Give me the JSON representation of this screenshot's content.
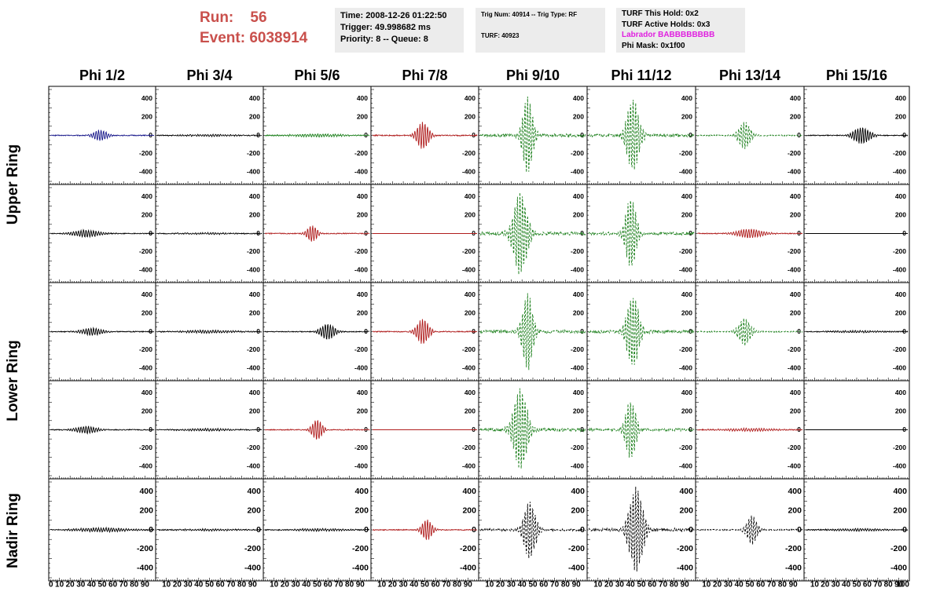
{
  "header": {
    "run_label": "Run:",
    "run_value": "56",
    "event_label": "Event:",
    "event_value": "6038914"
  },
  "info_boxes": {
    "time_box": [
      "Time: 2008-12-26 01:22:50",
      "Trigger: 49.998682 ms",
      "Priority: 8 -- Queue: 8"
    ],
    "trig_box": [
      "Trig Num: 40914 -- Trig Type: RF",
      "TURF: 40923"
    ],
    "turf_box": [
      "TURF This Hold: 0x2",
      "TURF Active Holds: 0x3",
      "Labrador BABBBBBBBB",
      "Phi Mask: 0x1f00"
    ]
  },
  "colors": {
    "run_text": "#c9504c",
    "labrador_text": "#e020e0",
    "info_bg": "#ececec",
    "blue": "#1a1a8c",
    "green": "#1b7f1b",
    "red": "#b01e1e",
    "black": "#000000"
  },
  "columns": [
    "Phi 1/2",
    "Phi 3/4",
    "Phi 5/6",
    "Phi 7/8",
    "Phi 9/10",
    "Phi 11/12",
    "Phi 13/14",
    "Phi 15/16"
  ],
  "row_labels": [
    "Upper Ring",
    "Lower Ring",
    "Nadir Ring"
  ],
  "y_ticks": [
    "400",
    "200",
    "0",
    "-200",
    "-400"
  ],
  "x_ticks": [
    "0",
    "10",
    "20",
    "30",
    "40",
    "50",
    "60",
    "70",
    "80",
    "90",
    "100"
  ],
  "chart_data": {
    "type": "line",
    "ylim": [
      -500,
      500
    ],
    "xlim": [
      0,
      100
    ],
    "panels": [
      [
        {
          "color": "blue",
          "style": "solid",
          "amp": 60,
          "center": 48,
          "width": 8
        },
        {
          "color": "black",
          "style": "solid",
          "amp": 10,
          "center": 50,
          "width": 30
        },
        {
          "color": "green",
          "style": "solid",
          "amp": 15,
          "center": 50,
          "width": 30
        },
        {
          "color": "red",
          "style": "solid",
          "amp": 150,
          "center": 48,
          "width": 7
        },
        {
          "color": "green",
          "style": "dashed",
          "amp": 420,
          "center": 45,
          "width": 6
        },
        {
          "color": "green",
          "style": "dashed",
          "amp": 400,
          "center": 42,
          "width": 7
        },
        {
          "color": "green",
          "style": "dashed",
          "amp": 150,
          "center": 45,
          "width": 7
        },
        {
          "color": "black",
          "style": "solid",
          "amp": 90,
          "center": 55,
          "width": 10
        }
      ],
      [
        {
          "color": "black",
          "style": "solid",
          "amp": 40,
          "center": 35,
          "width": 15
        },
        {
          "color": "black",
          "style": "solid",
          "amp": 8,
          "center": 50,
          "width": 30
        },
        {
          "color": "red",
          "style": "solid",
          "amp": 90,
          "center": 45,
          "width": 6
        },
        {
          "color": "red",
          "style": "flat",
          "amp": 0,
          "center": 50,
          "width": 10
        },
        {
          "color": "green",
          "style": "dashed",
          "amp": 450,
          "center": 38,
          "width": 8
        },
        {
          "color": "green",
          "style": "dashed",
          "amp": 400,
          "center": 40,
          "width": 6
        },
        {
          "color": "red",
          "style": "solid",
          "amp": 50,
          "center": 50,
          "width": 15
        },
        {
          "color": "black",
          "style": "flat",
          "amp": 0,
          "center": 50,
          "width": 10
        }
      ],
      [
        {
          "color": "black",
          "style": "solid",
          "amp": 40,
          "center": 40,
          "width": 12
        },
        {
          "color": "black",
          "style": "solid",
          "amp": 15,
          "center": 50,
          "width": 30
        },
        {
          "color": "black",
          "style": "solid",
          "amp": 90,
          "center": 60,
          "width": 8
        },
        {
          "color": "red",
          "style": "solid",
          "amp": 140,
          "center": 48,
          "width": 7
        },
        {
          "color": "green",
          "style": "dashed",
          "amp": 420,
          "center": 45,
          "width": 6
        },
        {
          "color": "green",
          "style": "dashed",
          "amp": 400,
          "center": 42,
          "width": 7
        },
        {
          "color": "green",
          "style": "dashed",
          "amp": 150,
          "center": 45,
          "width": 7
        },
        {
          "color": "black",
          "style": "solid",
          "amp": 10,
          "center": 50,
          "width": 30
        }
      ],
      [
        {
          "color": "black",
          "style": "solid",
          "amp": 40,
          "center": 35,
          "width": 12
        },
        {
          "color": "black",
          "style": "solid",
          "amp": 12,
          "center": 50,
          "width": 30
        },
        {
          "color": "red",
          "style": "solid",
          "amp": 110,
          "center": 50,
          "width": 6
        },
        {
          "color": "red",
          "style": "flat",
          "amp": 0,
          "center": 50,
          "width": 10
        },
        {
          "color": "green",
          "style": "dashed",
          "amp": 440,
          "center": 38,
          "width": 8
        },
        {
          "color": "green",
          "style": "dashed",
          "amp": 330,
          "center": 40,
          "width": 6
        },
        {
          "color": "red",
          "style": "solid",
          "amp": 15,
          "center": 50,
          "width": 30
        },
        {
          "color": "black",
          "style": "flat",
          "amp": 0,
          "center": 50,
          "width": 10
        }
      ],
      [
        {
          "color": "black",
          "style": "solid",
          "amp": 20,
          "center": 50,
          "width": 30
        },
        {
          "color": "black",
          "style": "solid",
          "amp": 10,
          "center": 50,
          "width": 30
        },
        {
          "color": "black",
          "style": "solid",
          "amp": 12,
          "center": 50,
          "width": 30
        },
        {
          "color": "red",
          "style": "solid",
          "amp": 110,
          "center": 52,
          "width": 6
        },
        {
          "color": "black",
          "style": "dashed",
          "amp": 300,
          "center": 47,
          "width": 7
        },
        {
          "color": "black",
          "style": "dashed",
          "amp": 440,
          "center": 45,
          "width": 8
        },
        {
          "color": "black",
          "style": "dashed",
          "amp": 150,
          "center": 52,
          "width": 6
        },
        {
          "color": "black",
          "style": "solid",
          "amp": 12,
          "center": 50,
          "width": 30
        }
      ]
    ]
  }
}
